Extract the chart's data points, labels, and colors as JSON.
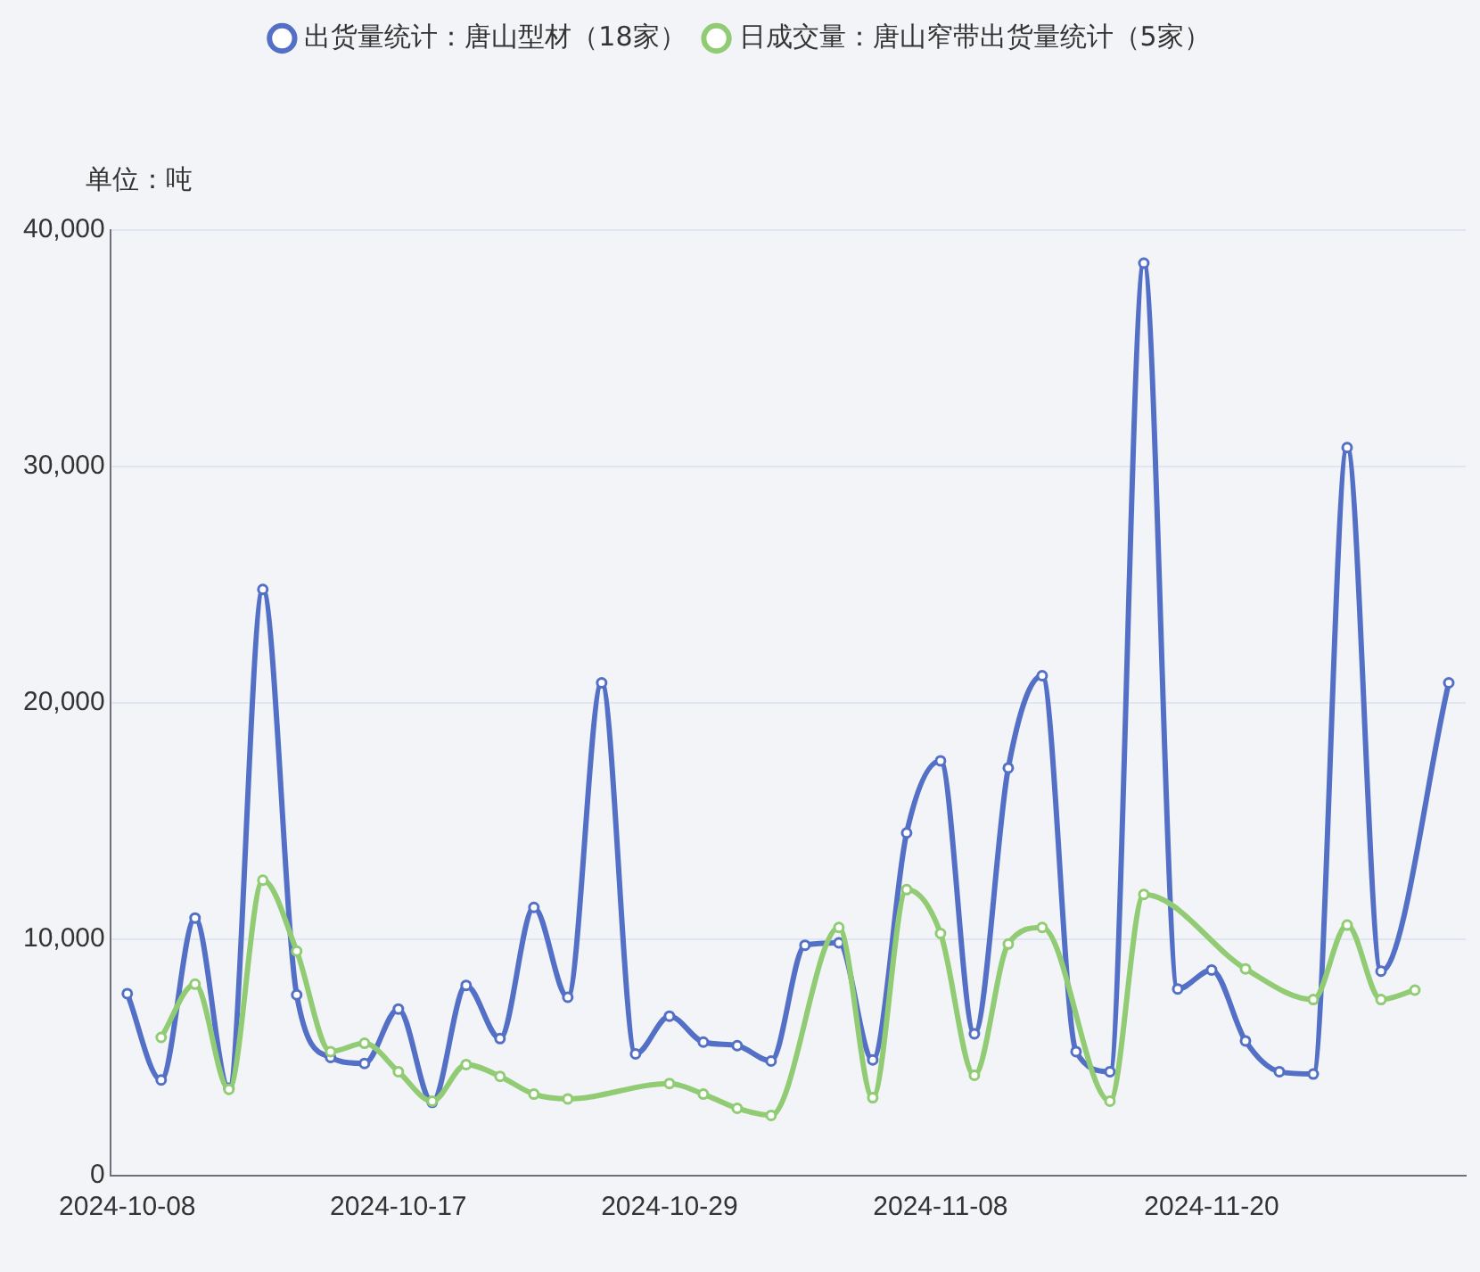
{
  "chart_data": {
    "type": "line",
    "ylabel": "单位：吨",
    "categories": [
      "2024-10-08",
      null,
      null,
      null,
      null,
      null,
      null,
      null,
      "2024-10-17",
      null,
      null,
      null,
      null,
      null,
      null,
      null,
      "2024-10-29",
      null,
      null,
      null,
      null,
      null,
      null,
      null,
      "2024-11-08",
      null,
      null,
      null,
      null,
      null,
      null,
      null,
      "2024-11-20",
      null,
      null,
      null,
      null,
      null,
      null,
      null
    ],
    "series": [
      {
        "name": "出货量统计：唐山型材（18家）",
        "color": "#5470c6",
        "values": [
          7700,
          4050,
          10900,
          3700,
          24800,
          7650,
          5000,
          4750,
          7050,
          3100,
          8050,
          5800,
          11350,
          7550,
          20850,
          5150,
          6750,
          5650,
          5500,
          4850,
          9750,
          9850,
          4900,
          14500,
          17550,
          6000,
          17250,
          21150,
          5250,
          4400,
          38600,
          7900,
          8700,
          5700,
          4400,
          4300,
          30800,
          8650,
          null,
          20850
        ]
      },
      {
        "name": "日成交量：唐山窄带出货量统计（5家）",
        "color": "#91cc75",
        "values": [
          null,
          5850,
          8100,
          3650,
          12500,
          9500,
          5250,
          5600,
          4400,
          3150,
          4700,
          4200,
          3450,
          3250,
          null,
          null,
          3900,
          3450,
          2850,
          2550,
          null,
          10500,
          3300,
          12100,
          10250,
          4250,
          9800,
          10500,
          null,
          3150,
          11900,
          null,
          null,
          8750,
          null,
          7450,
          10600,
          7450,
          7850,
          null
        ]
      }
    ],
    "ylim": [
      0,
      40000
    ],
    "yticks": [
      0,
      {
        "value": 10000,
        "label": "10,000"
      },
      {
        "value": 20000,
        "label": "20,000"
      },
      {
        "value": 30000,
        "label": "30,000"
      },
      {
        "value": 40000,
        "label": "40,000"
      }
    ],
    "grid": "y",
    "legend": "top",
    "marker": "circle",
    "line_style": "solid"
  }
}
